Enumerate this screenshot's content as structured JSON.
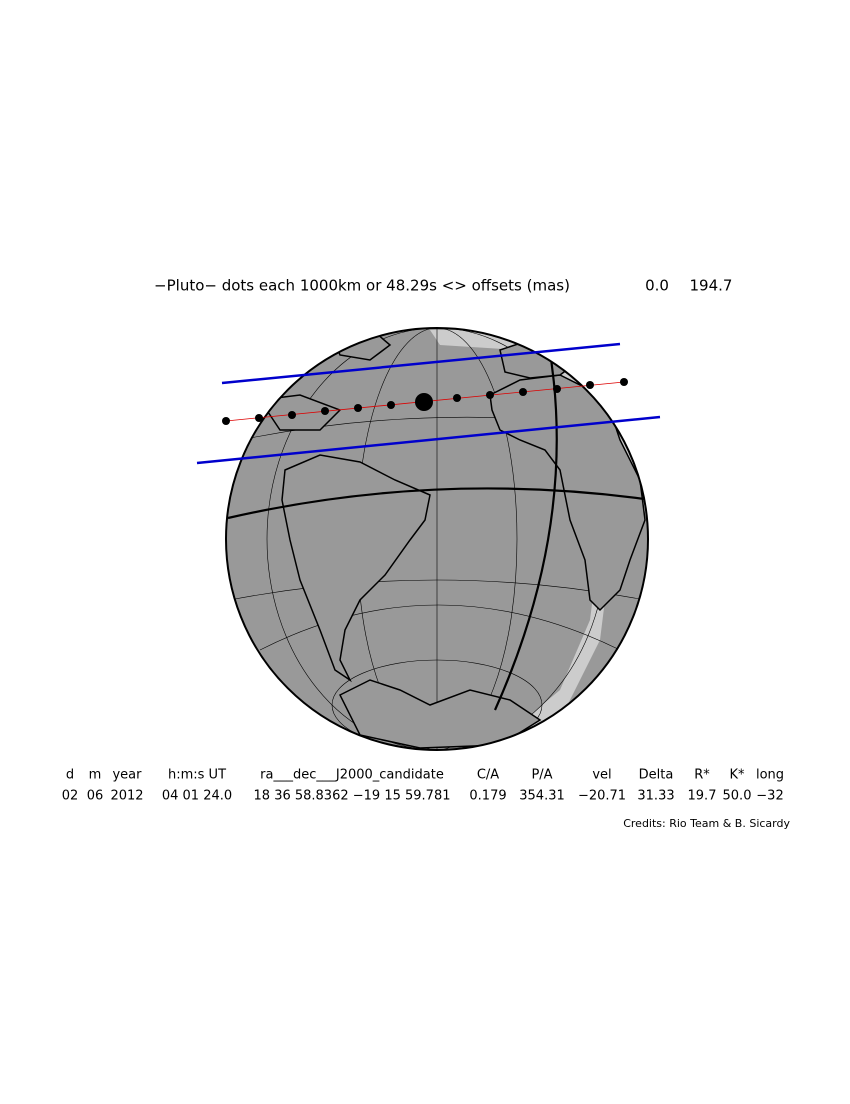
{
  "title": "−Pluto− dots each 1000km or 48.29s <> offsets (mas)",
  "offsets": [
    "0.0",
    "194.7"
  ],
  "table": {
    "header": [
      "d",
      "m",
      "year",
      "h:m:s UT",
      "ra___dec___J2000_candidate",
      "C/A",
      "P/A",
      "vel",
      "Delta",
      "R*",
      "K*",
      "long"
    ],
    "row": [
      "02",
      "06",
      "2012",
      "04 01 24.0",
      "18 36 58.8362 −19 15 59.781",
      "0.179",
      "354.31",
      "−20.71",
      "31.33",
      "19.7",
      "50.0",
      "−32"
    ]
  },
  "credits": "Credits: Rio Team & B. Sicardy"
}
